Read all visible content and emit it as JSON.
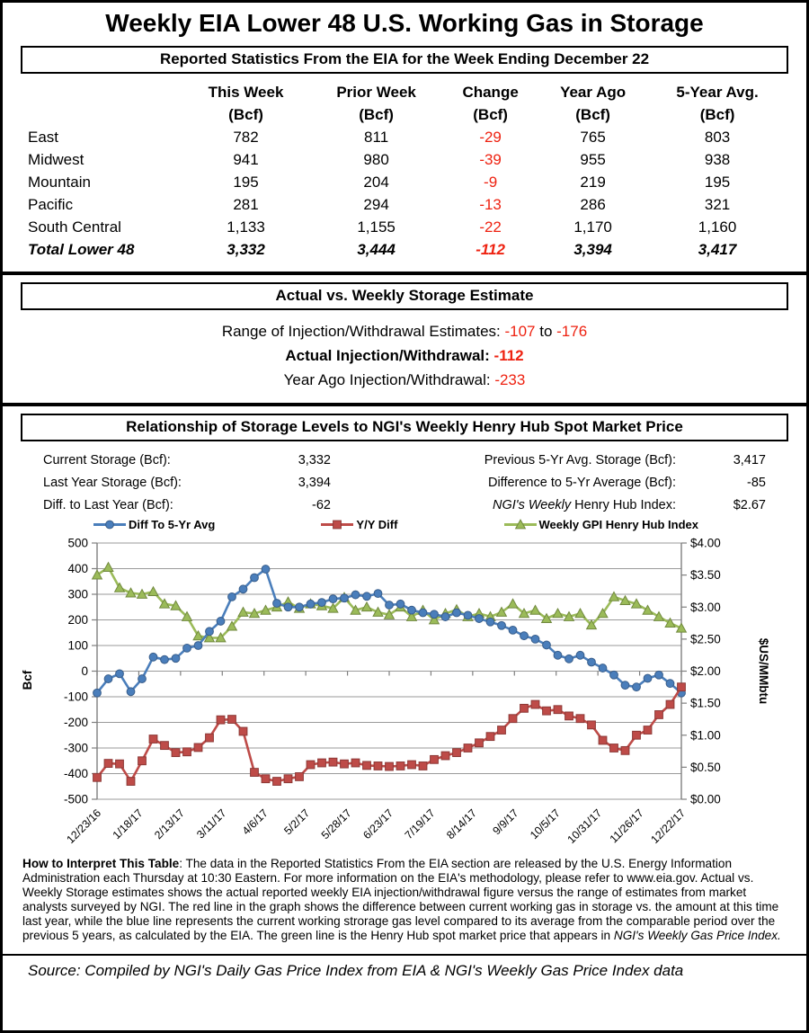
{
  "title": "Weekly EIA Lower 48 U.S. Working Gas in Storage",
  "colors": {
    "accent_red": "#ee2211",
    "series_blue": "#4a7ebb",
    "series_red": "#be4b48",
    "series_green": "#9bbb59"
  },
  "section1": {
    "header": "Reported Statistics From the EIA for the Week Ending December 22",
    "columns": [
      "This Week",
      "Prior Week",
      "Change",
      "Year Ago",
      "5-Year Avg."
    ],
    "unit": "(Bcf)",
    "rows": [
      {
        "region": "East",
        "values": [
          "782",
          "811",
          "-29",
          "765",
          "803"
        ]
      },
      {
        "region": "Midwest",
        "values": [
          "941",
          "980",
          "-39",
          "955",
          "938"
        ]
      },
      {
        "region": "Mountain",
        "values": [
          "195",
          "204",
          "-9",
          "219",
          "195"
        ]
      },
      {
        "region": "Pacific",
        "values": [
          "281",
          "294",
          "-13",
          "286",
          "321"
        ]
      },
      {
        "region": "South Central",
        "values": [
          "1,133",
          "1,155",
          "-22",
          "1,170",
          "1,160"
        ]
      }
    ],
    "total": {
      "region": "Total Lower 48",
      "values": [
        "3,332",
        "3,444",
        "-112",
        "3,394",
        "3,417"
      ]
    }
  },
  "section2": {
    "header": "Actual vs. Weekly Storage Estimate",
    "range_label": "Range of Injection/Withdrawal Estimates: ",
    "range_low": "-107",
    "range_to": " to ",
    "range_high": "-176",
    "actual_label": "Actual Injection/Withdrawal: ",
    "actual_value": "-112",
    "year_ago_label": "Year Ago Injection/Withdrawal: ",
    "year_ago_value": "-233"
  },
  "section3": {
    "header": "Relationship of Storage Levels to NGI's Weekly Henry Hub Spot Market Price",
    "stats_left": [
      {
        "label": "Current Storage (Bcf):",
        "value": "3,332"
      },
      {
        "label": "Last Year Storage (Bcf):",
        "value": "3,394"
      },
      {
        "label": "Diff. to Last Year (Bcf):",
        "value": "-62"
      }
    ],
    "stats_right": [
      {
        "label": "Previous 5-Yr Avg. Storage (Bcf):",
        "value": "3,417"
      },
      {
        "label": "Difference to 5-Yr Average (Bcf):",
        "value": "-85"
      },
      {
        "label_italic": "NGI's Weekly",
        "label": " Henry Hub Index:",
        "value": "$2.67"
      }
    ]
  },
  "chart_data": {
    "type": "line",
    "title": "",
    "x_tick_labels": [
      "12/23/16",
      "1/18/17",
      "2/13/17",
      "3/11/17",
      "4/6/17",
      "5/2/17",
      "5/28/17",
      "6/23/17",
      "7/19/17",
      "8/14/17",
      "9/9/17",
      "10/5/17",
      "10/31/17",
      "11/26/17",
      "12/22/17"
    ],
    "left_axis": {
      "label": "Bcf",
      "min": -500,
      "max": 500,
      "step": 100
    },
    "right_axis": {
      "label": "$US/MMbtu",
      "min": 0,
      "max": 4,
      "step": 0.5,
      "prefix": "$"
    },
    "grid": true,
    "legend_position": "top",
    "series": [
      {
        "name": "Diff To 5-Yr Avg",
        "axis": "left",
        "color": "#4a7ebb",
        "edge": "#385d8a",
        "marker": "circle",
        "values": [
          -85,
          -30,
          -10,
          -80,
          -30,
          55,
          45,
          50,
          90,
          100,
          155,
          195,
          290,
          320,
          365,
          398,
          265,
          250,
          250,
          262,
          268,
          282,
          285,
          298,
          292,
          303,
          258,
          262,
          238,
          228,
          222,
          212,
          228,
          218,
          205,
          192,
          178,
          160,
          138,
          125,
          102,
          62,
          48,
          62,
          35,
          12,
          -15,
          -55,
          -62,
          -28,
          -15,
          -48,
          -85
        ]
      },
      {
        "name": "Y/Y Diff",
        "axis": "left",
        "color": "#be4b48",
        "edge": "#8c3836",
        "marker": "square",
        "values": [
          -415,
          -360,
          -362,
          -430,
          -350,
          -265,
          -290,
          -318,
          -315,
          -298,
          -260,
          -190,
          -188,
          -235,
          -395,
          -420,
          -430,
          -420,
          -412,
          -365,
          -358,
          -355,
          -362,
          -358,
          -368,
          -370,
          -372,
          -370,
          -365,
          -370,
          -345,
          -330,
          -318,
          -300,
          -280,
          -255,
          -230,
          -185,
          -145,
          -130,
          -155,
          -150,
          -175,
          -185,
          -210,
          -270,
          -300,
          -310,
          -250,
          -230,
          -170,
          -130,
          -62
        ]
      },
      {
        "name": "Weekly GPI Henry Hub Index",
        "axis": "right",
        "color": "#9bbb59",
        "edge": "#71893f",
        "marker": "triangle",
        "values": [
          3.5,
          3.62,
          3.3,
          3.22,
          3.2,
          3.24,
          3.05,
          3.02,
          2.85,
          2.55,
          2.52,
          2.52,
          2.7,
          2.92,
          2.9,
          2.95,
          3.0,
          3.08,
          2.98,
          3.05,
          3.02,
          2.98,
          3.15,
          2.95,
          3.0,
          2.92,
          2.88,
          3.0,
          2.85,
          2.95,
          2.8,
          2.9,
          2.96,
          2.85,
          2.9,
          2.85,
          2.92,
          3.05,
          2.9,
          2.95,
          2.82,
          2.9,
          2.85,
          2.9,
          2.72,
          2.9,
          3.16,
          3.1,
          3.05,
          2.95,
          2.85,
          2.75,
          2.67
        ]
      }
    ]
  },
  "footer": {
    "intro_bold": "How to Interpret This Table",
    "body": ": The data in the Reported Statistics From the EIA section are released by the U.S. Energy Information Administration each Thursday at 10:30 Eastern. For more information on the EIA's methodology, please refer to www.eia.gov. Actual vs. Weekly Storage estimates shows the actual reported weekly EIA injection/withdrawal figure versus the range of estimates from market analysts surveyed by NGI. The red line in the graph shows the difference between current working gas in storage vs. the amount at this time last year, while the blue line represents the current working strorage gas level  compared to its average from the comparable period over the previous 5 years, as calculated by the EIA. The green line is the Henry Hub spot market price that appears in ",
    "italic_end": "NGI's Weekly Gas Price Index."
  },
  "source": "Source: Compiled by NGI's Daily Gas Price Index from EIA & NGI's Weekly Gas Price Index data"
}
